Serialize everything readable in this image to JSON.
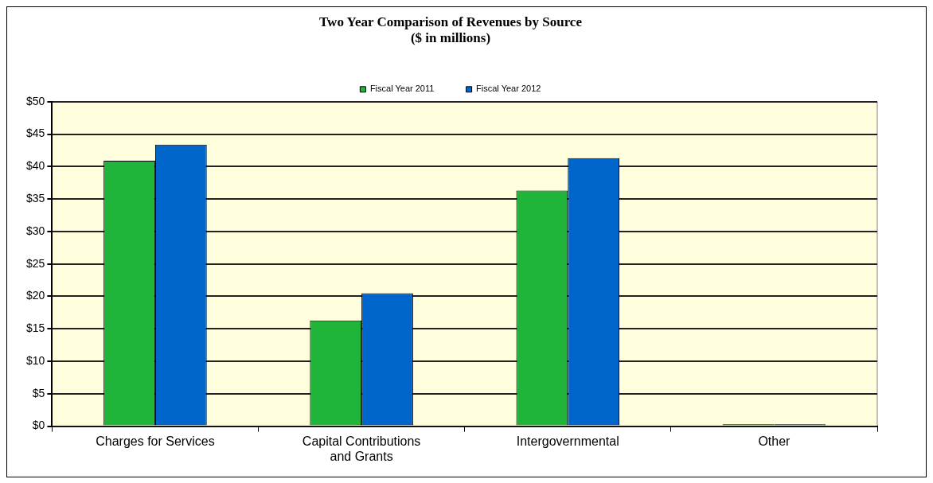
{
  "chart_data": {
    "type": "bar",
    "title": "Two Year Comparison of Revenues by Source\n($ in millions)",
    "categories": [
      "Charges for Services",
      "Capital Contributions and Grants",
      "Intergovernmental",
      "Other"
    ],
    "series": [
      {
        "name": "Fiscal Year 2011",
        "color": "#21b43a",
        "values": [
          40.9,
          16.3,
          36.3,
          0.3
        ]
      },
      {
        "name": "Fiscal Year 2012",
        "color": "#0066cc",
        "values": [
          43.4,
          20.5,
          41.3,
          0.3
        ]
      }
    ],
    "ylim": [
      0,
      50
    ],
    "yticks": [
      {
        "value": 0,
        "label": "$0"
      },
      {
        "value": 5,
        "label": "$5"
      },
      {
        "value": 10,
        "label": "$10"
      },
      {
        "value": 15,
        "label": "$15"
      },
      {
        "value": 20,
        "label": "$20"
      },
      {
        "value": 25,
        "label": "$25"
      },
      {
        "value": 30,
        "label": "$30"
      },
      {
        "value": 35,
        "label": "$35"
      },
      {
        "value": 40,
        "label": "$40"
      },
      {
        "value": 45,
        "label": "$45"
      },
      {
        "value": 50,
        "label": "$50"
      }
    ],
    "grid": "y",
    "legend": "top"
  }
}
